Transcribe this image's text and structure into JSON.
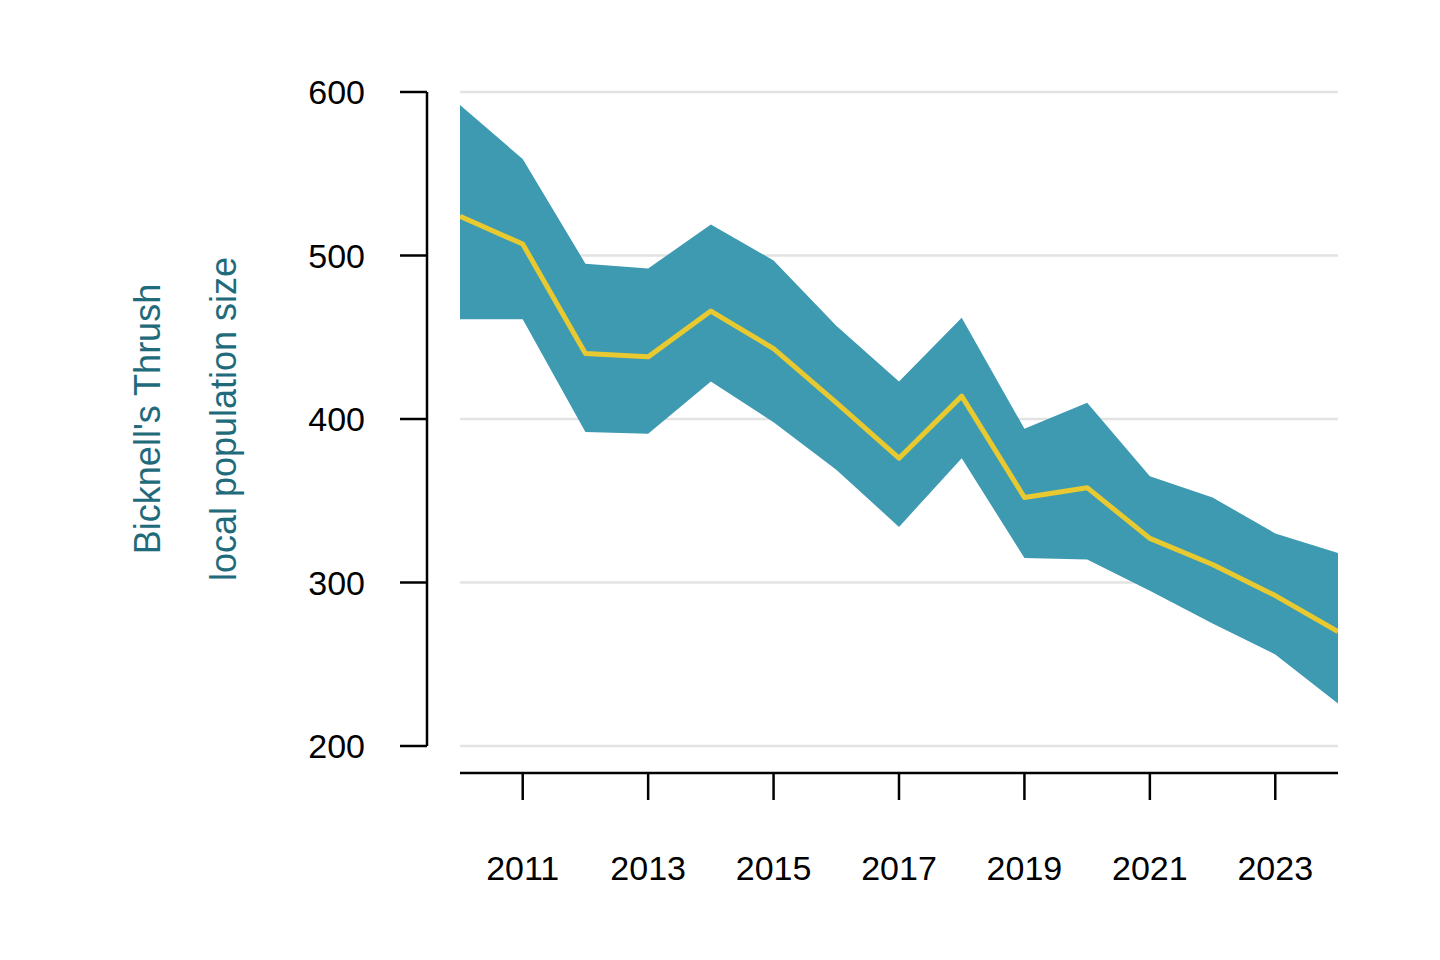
{
  "chart_data": {
    "type": "line",
    "ylabel": [
      "Bicknell's Thrush",
      "local population size"
    ],
    "x": [
      2010,
      2011,
      2012,
      2013,
      2014,
      2015,
      2016,
      2017,
      2018,
      2019,
      2020,
      2021,
      2022,
      2023,
      2024
    ],
    "series": [
      {
        "color": "#e8c92f",
        "values": [
          524,
          507,
          440,
          438,
          466,
          443,
          410,
          376,
          414,
          352,
          358,
          327,
          311,
          292,
          270
        ],
        "lower": [
          461,
          461,
          392,
          391,
          423,
          398,
          369,
          334,
          376,
          315,
          314,
          295,
          275,
          256,
          226
        ],
        "upper": [
          592,
          559,
          495,
          492,
          519,
          497,
          457,
          423,
          462,
          394,
          410,
          365,
          352,
          330,
          318
        ]
      }
    ],
    "xlim": [
      2010,
      2024
    ],
    "xticks": [
      2011,
      2013,
      2015,
      2017,
      2019,
      2021,
      2023
    ],
    "ylim": [
      200,
      600
    ],
    "yticks": [
      200,
      300,
      400,
      500,
      600
    ],
    "grid": true
  }
}
